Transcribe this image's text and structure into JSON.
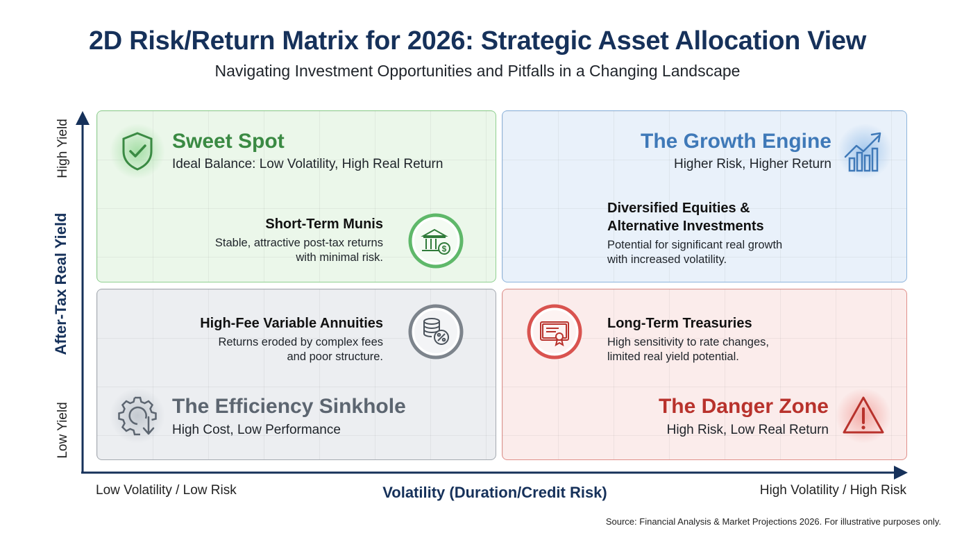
{
  "title": "2D Risk/Return Matrix for 2026: Strategic Asset Allocation View",
  "subtitle": "Navigating Investment Opportunities and Pitfalls in a Changing Landscape",
  "y_axis": {
    "title": "After-Tax Real Yield",
    "high_label": "High Yield",
    "low_label": "Low Yield"
  },
  "x_axis": {
    "title": "Volatility (Duration/Credit Risk)",
    "low_label": "Low Volatility / Low Risk",
    "high_label": "High Volatility / High Risk"
  },
  "quadrants": {
    "sweet_spot": {
      "title": "Sweet Spot",
      "description": "Ideal Balance: Low Volatility, High Real Return",
      "color": "#3a8a43",
      "icon": "shield-check-icon"
    },
    "growth_engine": {
      "title": "The Growth Engine",
      "description": "Higher Risk, Higher Return",
      "color": "#3f79b8",
      "icon": "growth-chart-icon"
    },
    "efficiency_sinkhole": {
      "title": "The Efficiency Sinkhole",
      "description": "High Cost, Low Performance",
      "color": "#5c6570",
      "icon": "gear-down-arrow-icon"
    },
    "danger_zone": {
      "title": "The Danger Zone",
      "description": "High Risk, Low Real Return",
      "color": "#b8322c",
      "icon": "warning-triangle-icon"
    }
  },
  "items": {
    "munis": {
      "name": "Short-Term Munis",
      "line1": "Stable, attractive post-tax returns",
      "line2": "with minimal risk.",
      "icon": "bank-dollar-icon"
    },
    "equities": {
      "name_line1": "Diversified Equities &",
      "name_line2": "Alternative Investments",
      "line1": "Potential for significant real growth",
      "line2": "with increased volatility."
    },
    "annuities": {
      "name": "High-Fee Variable Annuities",
      "line1": "Returns eroded by complex fees",
      "line2": "and poor structure.",
      "icon": "coins-percent-icon"
    },
    "treasuries": {
      "name": "Long-Term Treasuries",
      "line1": "High sensitivity to rate changes,",
      "line2": "limited real yield potential.",
      "icon": "certificate-icon"
    }
  },
  "source": "Source: Financial Analysis & Market Projections 2026. For illustrative purposes only."
}
